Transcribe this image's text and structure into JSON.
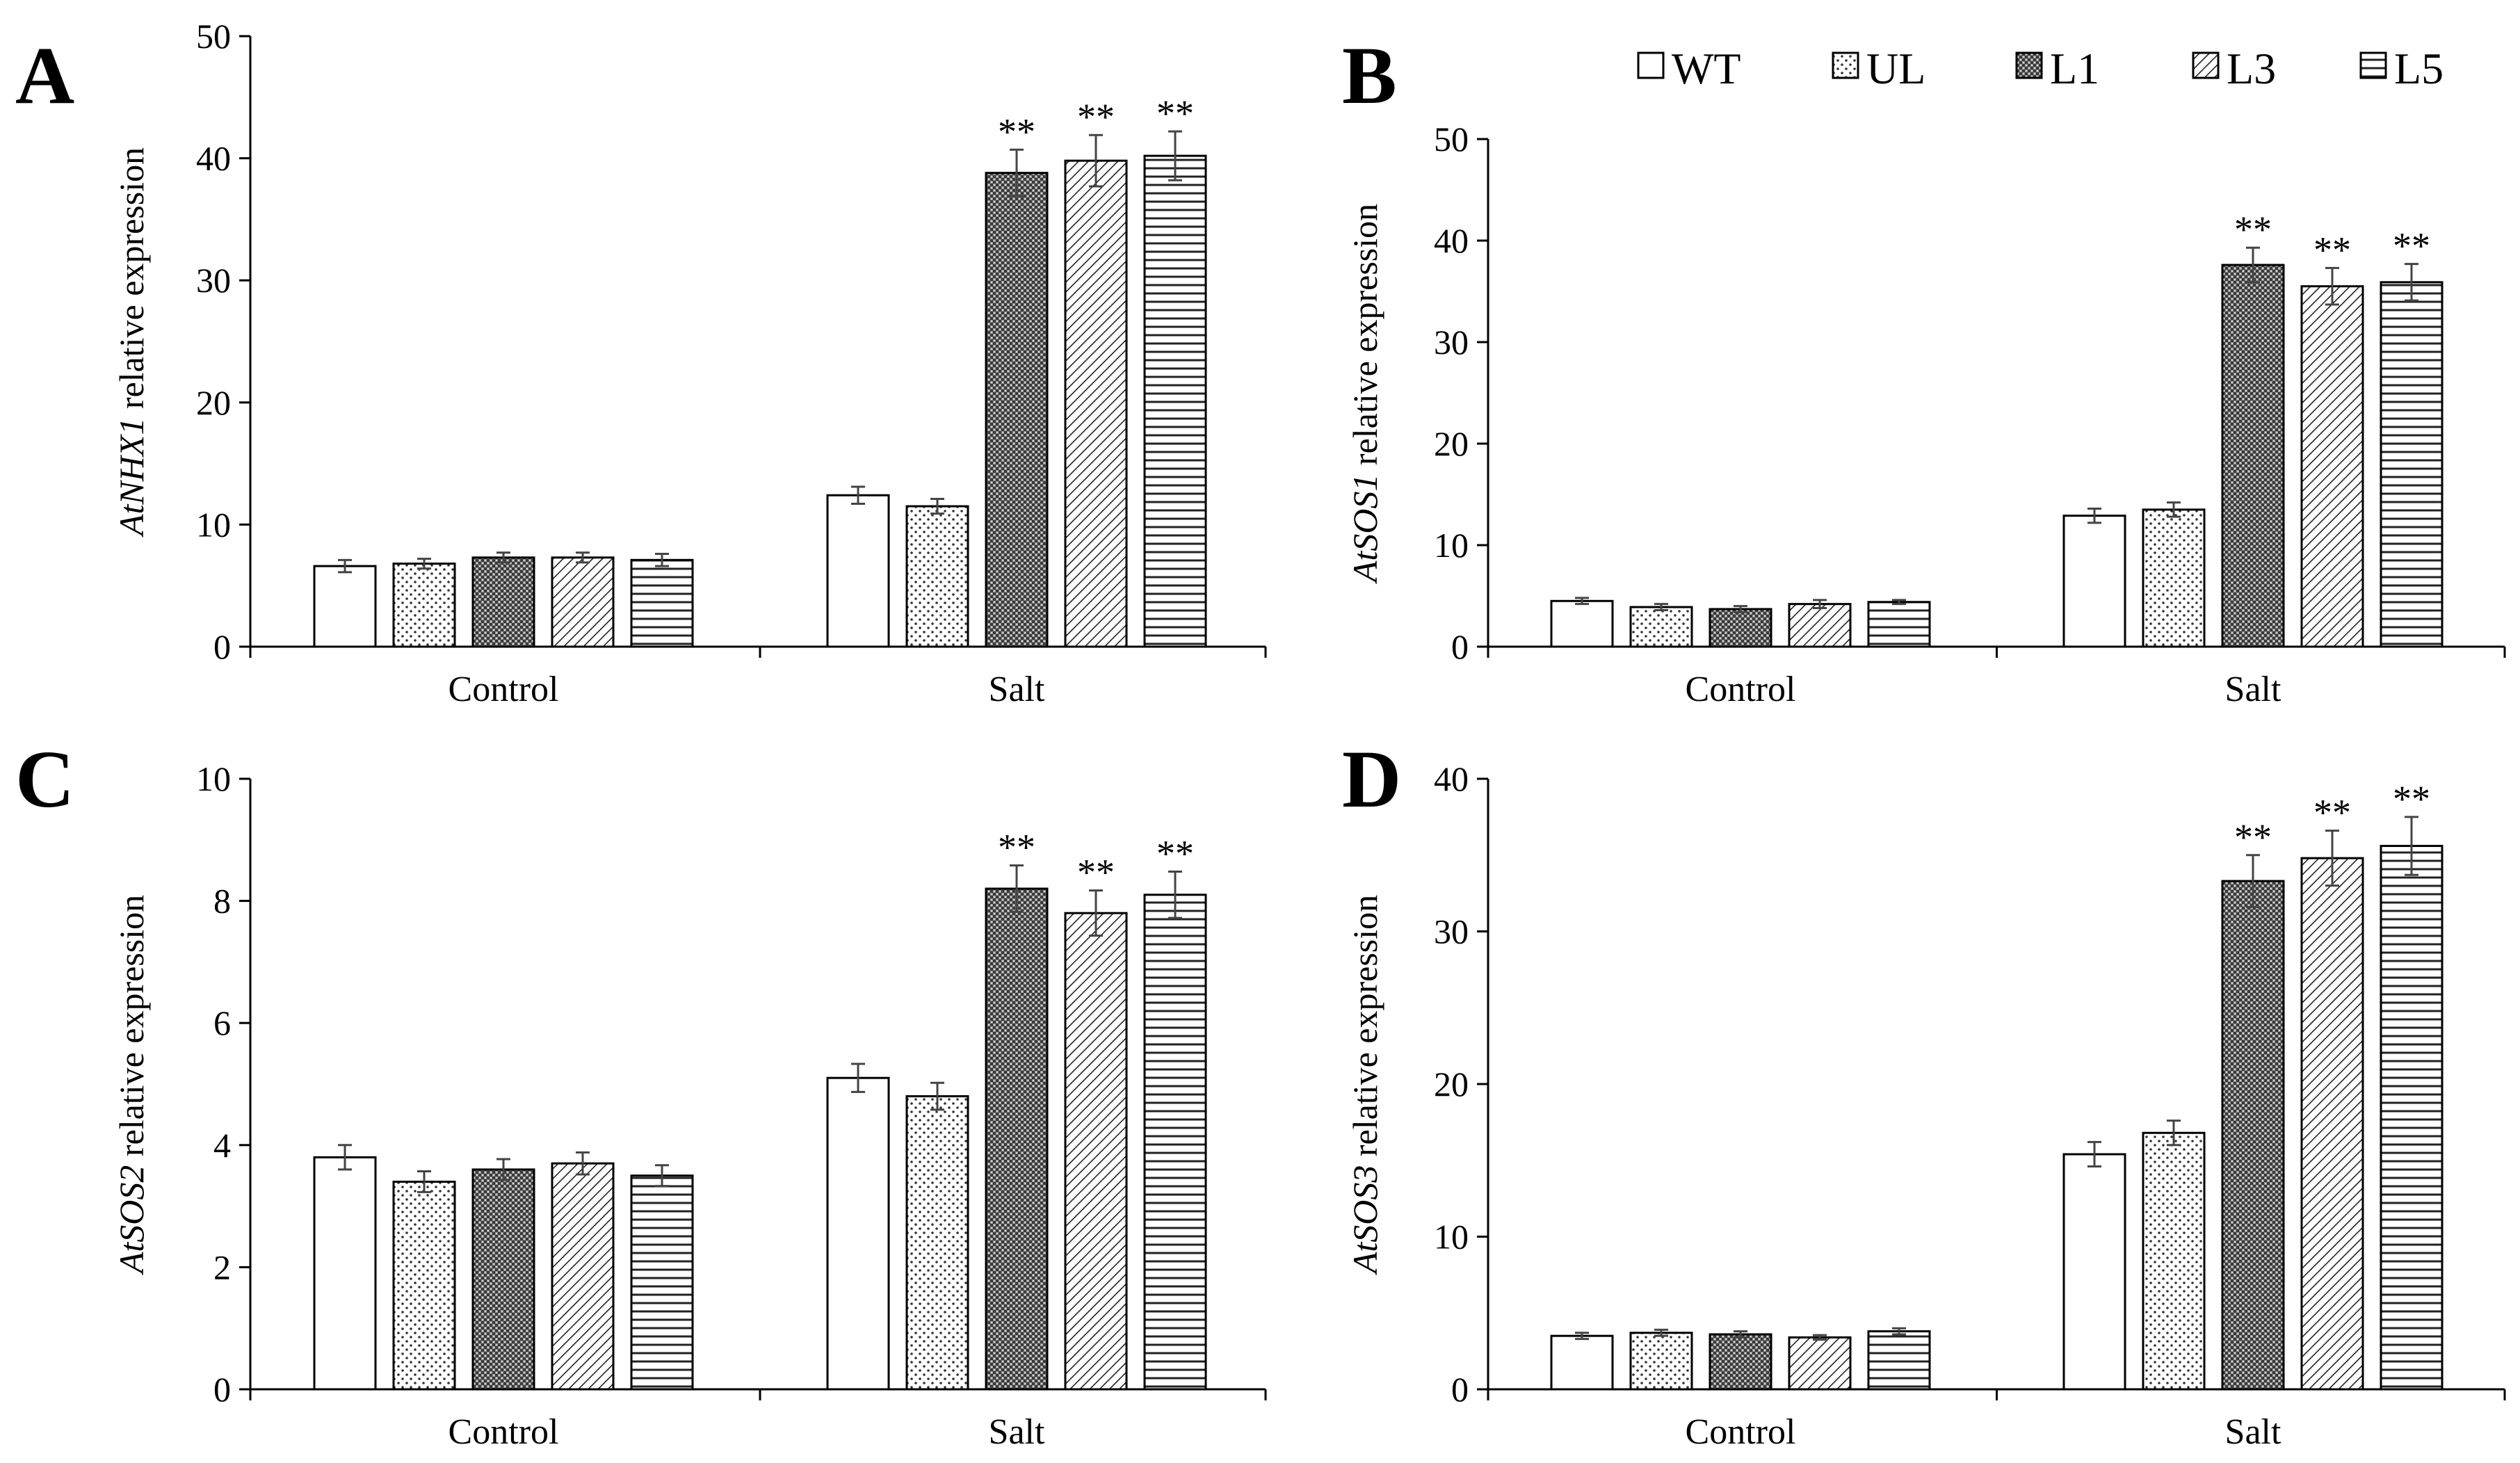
{
  "legend": [
    {
      "name": "WT",
      "pattern": "white"
    },
    {
      "name": "UL",
      "pattern": "dots"
    },
    {
      "name": "L1",
      "pattern": "dense"
    },
    {
      "name": "L3",
      "pattern": "diag"
    },
    {
      "name": "L5",
      "pattern": "hlines"
    }
  ],
  "chart_data": [
    {
      "type": "bar",
      "panel": "A",
      "title": "",
      "ylabel_gene": "AtNHX1",
      "ylabel_rest": " relative expression",
      "categories": [
        "Control",
        "Salt"
      ],
      "ylim": [
        0,
        50
      ],
      "yticks": [
        0,
        10,
        20,
        30,
        40,
        50
      ],
      "series": [
        {
          "name": "WT",
          "values": [
            6.6,
            12.4
          ],
          "errors": [
            0.5,
            0.7
          ]
        },
        {
          "name": "UL",
          "values": [
            6.8,
            11.5
          ],
          "errors": [
            0.4,
            0.6
          ]
        },
        {
          "name": "L1",
          "values": [
            7.3,
            38.8
          ],
          "errors": [
            0.4,
            1.9
          ]
        },
        {
          "name": "L3",
          "values": [
            7.3,
            39.8
          ],
          "errors": [
            0.4,
            2.1
          ]
        },
        {
          "name": "L5",
          "values": [
            7.1,
            40.2
          ],
          "errors": [
            0.5,
            2.0
          ]
        }
      ],
      "significance": [
        {
          "category": "Salt",
          "series": "L1",
          "label": "**"
        },
        {
          "category": "Salt",
          "series": "L3",
          "label": "**"
        },
        {
          "category": "Salt",
          "series": "L5",
          "label": "**"
        }
      ]
    },
    {
      "type": "bar",
      "panel": "B",
      "title": "",
      "ylabel_gene": "AtSOS1",
      "ylabel_rest": " relative expression",
      "categories": [
        "Control",
        "Salt"
      ],
      "ylim": [
        0,
        50
      ],
      "yticks": [
        0,
        10,
        20,
        30,
        40,
        50
      ],
      "series": [
        {
          "name": "WT",
          "values": [
            4.5,
            12.9
          ],
          "errors": [
            0.3,
            0.7
          ]
        },
        {
          "name": "UL",
          "values": [
            3.9,
            13.5
          ],
          "errors": [
            0.3,
            0.7
          ]
        },
        {
          "name": "L1",
          "values": [
            3.7,
            37.6
          ],
          "errors": [
            0.3,
            1.7
          ]
        },
        {
          "name": "L3",
          "values": [
            4.2,
            35.5
          ],
          "errors": [
            0.4,
            1.8
          ]
        },
        {
          "name": "L5",
          "values": [
            4.4,
            35.9
          ],
          "errors": [
            0.2,
            1.8
          ]
        }
      ],
      "significance": [
        {
          "category": "Salt",
          "series": "L1",
          "label": "**"
        },
        {
          "category": "Salt",
          "series": "L3",
          "label": "**"
        },
        {
          "category": "Salt",
          "series": "L5",
          "label": "**"
        }
      ]
    },
    {
      "type": "bar",
      "panel": "C",
      "title": "",
      "ylabel_gene": "AtSOS2",
      "ylabel_rest": " relative expression",
      "categories": [
        "Control",
        "Salt"
      ],
      "ylim": [
        0,
        10
      ],
      "yticks": [
        0,
        2,
        4,
        6,
        8,
        10
      ],
      "series": [
        {
          "name": "WT",
          "values": [
            3.8,
            5.1
          ],
          "errors": [
            0.2,
            0.23
          ]
        },
        {
          "name": "UL",
          "values": [
            3.4,
            4.8
          ],
          "errors": [
            0.17,
            0.22
          ]
        },
        {
          "name": "L1",
          "values": [
            3.6,
            8.2
          ],
          "errors": [
            0.17,
            0.38
          ]
        },
        {
          "name": "L3",
          "values": [
            3.7,
            7.8
          ],
          "errors": [
            0.18,
            0.37
          ]
        },
        {
          "name": "L5",
          "values": [
            3.5,
            8.1
          ],
          "errors": [
            0.17,
            0.38
          ]
        }
      ],
      "significance": [
        {
          "category": "Salt",
          "series": "L1",
          "label": "**"
        },
        {
          "category": "Salt",
          "series": "L3",
          "label": "**"
        },
        {
          "category": "Salt",
          "series": "L5",
          "label": "**"
        }
      ]
    },
    {
      "type": "bar",
      "panel": "D",
      "title": "",
      "ylabel_gene": "AtSOS3",
      "ylabel_rest": " relative expression",
      "categories": [
        "Control",
        "Salt"
      ],
      "ylim": [
        0,
        40
      ],
      "yticks": [
        0,
        10,
        20,
        30,
        40
      ],
      "series": [
        {
          "name": "WT",
          "values": [
            3.5,
            15.4
          ],
          "errors": [
            0.2,
            0.8
          ]
        },
        {
          "name": "UL",
          "values": [
            3.7,
            16.8
          ],
          "errors": [
            0.2,
            0.8
          ]
        },
        {
          "name": "L1",
          "values": [
            3.6,
            33.3
          ],
          "errors": [
            0.2,
            1.7
          ]
        },
        {
          "name": "L3",
          "values": [
            3.4,
            34.8
          ],
          "errors": [
            0.15,
            1.8
          ]
        },
        {
          "name": "L5",
          "values": [
            3.8,
            35.6
          ],
          "errors": [
            0.2,
            1.9
          ]
        }
      ],
      "significance": [
        {
          "category": "Salt",
          "series": "L1",
          "label": "**"
        },
        {
          "category": "Salt",
          "series": "L3",
          "label": "**"
        },
        {
          "category": "Salt",
          "series": "L5",
          "label": "**"
        }
      ]
    }
  ]
}
